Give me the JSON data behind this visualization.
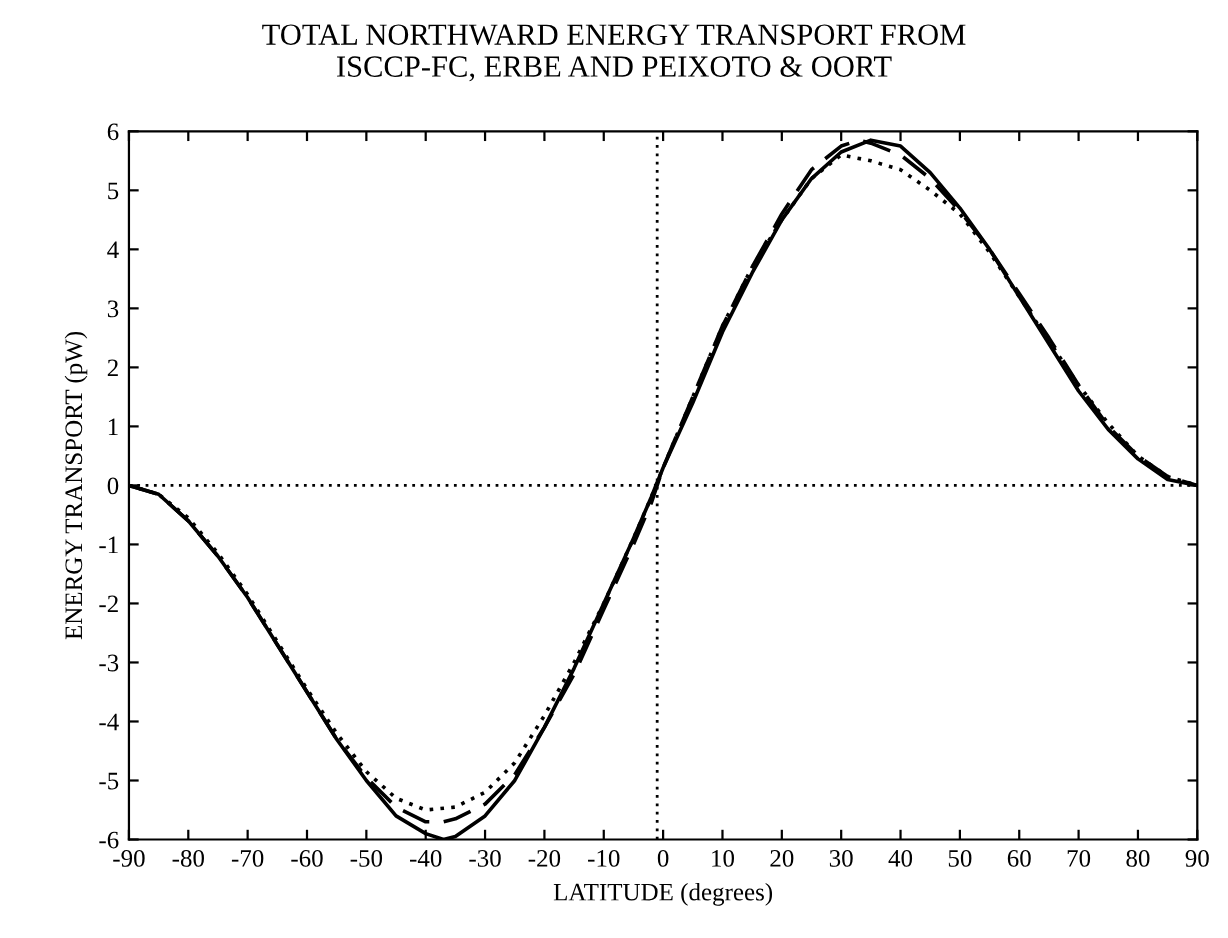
{
  "chart_data": {
    "type": "line",
    "title": "TOTAL NORTHWARD ENERGY TRANSPORT FROM\nISCCP-FC, ERBE AND PEIXOTO & OORT",
    "xlabel": "LATITUDE (degrees)",
    "ylabel": "ENERGY TRANSPORT (pW)",
    "xlim": [
      -90,
      90
    ],
    "ylim": [
      -6,
      6
    ],
    "xticks": [
      -90,
      -80,
      -70,
      -60,
      -50,
      -40,
      -30,
      -20,
      -10,
      0,
      10,
      20,
      30,
      40,
      50,
      60,
      70,
      80,
      90
    ],
    "yticks": [
      -6,
      -5,
      -4,
      -3,
      -2,
      -1,
      0,
      1,
      2,
      3,
      4,
      5,
      6
    ],
    "grid": false,
    "legend": false,
    "ref_lines": [
      {
        "axis": "y",
        "value": 0,
        "line_style": "dotted",
        "color": "#000000"
      },
      {
        "axis": "x",
        "value": -1,
        "line_style": "dotted",
        "color": "#000000"
      }
    ],
    "series": [
      {
        "color": "#000000",
        "line_style": "solid",
        "x": [
          -90,
          -85,
          -80,
          -75,
          -70,
          -65,
          -60,
          -55,
          -50,
          -45,
          -40,
          -37,
          -35,
          -30,
          -25,
          -20,
          -15,
          -10,
          -5,
          -2,
          0,
          5,
          10,
          15,
          20,
          25,
          30,
          35,
          40,
          45,
          50,
          55,
          60,
          65,
          70,
          75,
          80,
          85,
          90
        ],
        "values": [
          0,
          -0.15,
          -0.6,
          -1.2,
          -1.9,
          -2.7,
          -3.5,
          -4.3,
          -5.0,
          -5.6,
          -5.9,
          -6.0,
          -5.95,
          -5.6,
          -5.0,
          -4.1,
          -3.1,
          -2.0,
          -0.9,
          -0.2,
          0.3,
          1.4,
          2.6,
          3.6,
          4.5,
          5.2,
          5.65,
          5.85,
          5.75,
          5.3,
          4.7,
          4.0,
          3.2,
          2.4,
          1.6,
          0.95,
          0.45,
          0.1,
          0
        ]
      },
      {
        "color": "#000000",
        "line_style": "dashed",
        "x": [
          -90,
          -85,
          -80,
          -75,
          -70,
          -65,
          -60,
          -55,
          -50,
          -45,
          -40,
          -37,
          -35,
          -30,
          -25,
          -20,
          -15,
          -10,
          -5,
          -2,
          0,
          5,
          10,
          15,
          20,
          25,
          30,
          33,
          35,
          40,
          45,
          50,
          55,
          60,
          65,
          70,
          75,
          80,
          85,
          90
        ],
        "values": [
          0,
          -0.15,
          -0.6,
          -1.2,
          -1.9,
          -2.7,
          -3.5,
          -4.3,
          -4.95,
          -5.45,
          -5.7,
          -5.7,
          -5.65,
          -5.4,
          -4.9,
          -4.1,
          -3.2,
          -2.1,
          -1.0,
          -0.3,
          0.3,
          1.5,
          2.7,
          3.7,
          4.6,
          5.35,
          5.75,
          5.85,
          5.8,
          5.6,
          5.2,
          4.65,
          4.0,
          3.25,
          2.5,
          1.7,
          1.0,
          0.5,
          0.15,
          0
        ]
      },
      {
        "color": "#000000",
        "line_style": "dotted",
        "x": [
          -90,
          -85,
          -80,
          -75,
          -70,
          -65,
          -60,
          -55,
          -50,
          -45,
          -40,
          -35,
          -30,
          -25,
          -20,
          -15,
          -10,
          -5,
          -2,
          0,
          5,
          10,
          15,
          20,
          25,
          30,
          35,
          40,
          45,
          50,
          55,
          60,
          65,
          70,
          75,
          80,
          85,
          90
        ],
        "values": [
          0,
          -0.15,
          -0.55,
          -1.15,
          -1.85,
          -2.65,
          -3.45,
          -4.2,
          -4.85,
          -5.3,
          -5.5,
          -5.45,
          -5.2,
          -4.7,
          -3.9,
          -3.0,
          -2.0,
          -0.9,
          -0.2,
          0.3,
          1.5,
          2.7,
          3.7,
          4.5,
          5.2,
          5.6,
          5.5,
          5.35,
          5.0,
          4.6,
          3.95,
          3.2,
          2.45,
          1.7,
          1.05,
          0.5,
          0.15,
          0
        ]
      }
    ]
  }
}
